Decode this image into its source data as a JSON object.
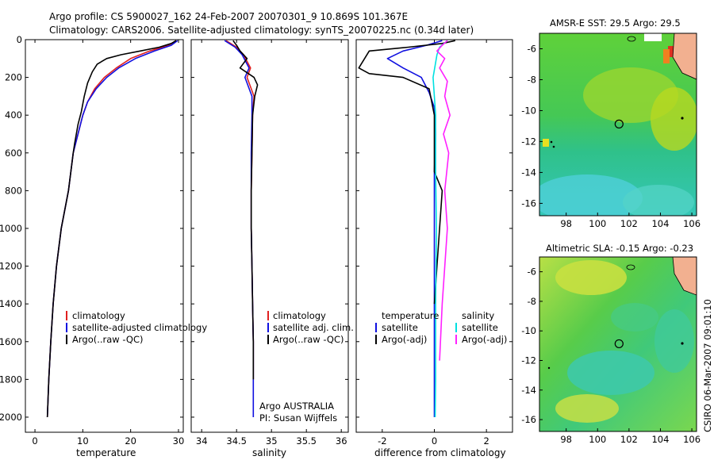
{
  "header": {
    "line1": "Argo profile: CS 5900027_162 24-Feb-2007 20070301_9 10.869S 101.367E",
    "line2": "Climatology: CARS2006. Satellite-adjusted climatology: synTS_20070225.nc (0.34d later)"
  },
  "colors": {
    "climatology": "#e02020",
    "satellite": "#1010e0",
    "argo": "#000000",
    "sat_salinity": "#00e0e0",
    "argo_salinity": "#ff20ff"
  },
  "chart_data": [
    {
      "type": "line",
      "id": "temperature",
      "xlabel": "temperature",
      "ylabel": "",
      "xlim": [
        -2,
        31
      ],
      "ylim": [
        2080,
        0
      ],
      "x_ticks": [
        "0",
        "10",
        "20",
        "30"
      ],
      "y_ticks": [
        "0",
        "200",
        "400",
        "600",
        "800",
        "1000",
        "1200",
        "1400",
        "1600",
        "1800",
        "2000"
      ],
      "legend": [
        "climatology",
        "satellite-adjusted climatology",
        "Argo(..raw -QC)"
      ],
      "series": [
        {
          "name": "climatology",
          "color": "#e02020",
          "points": [
            [
              29.5,
              5
            ],
            [
              28,
              30
            ],
            [
              24,
              60
            ],
            [
              20,
              100
            ],
            [
              17,
              150
            ],
            [
              14.5,
              200
            ],
            [
              12.5,
              260
            ],
            [
              11,
              330
            ],
            [
              10,
              400
            ],
            [
              9,
              500
            ],
            [
              8,
              600
            ],
            [
              7,
              800
            ],
            [
              5.5,
              1000
            ],
            [
              4.5,
              1200
            ],
            [
              3.8,
              1400
            ],
            [
              3.3,
              1600
            ],
            [
              2.9,
              1800
            ],
            [
              2.6,
              2000
            ]
          ]
        },
        {
          "name": "satellite-adjusted climatology",
          "color": "#1010e0",
          "points": [
            [
              29.8,
              5
            ],
            [
              28.5,
              30
            ],
            [
              25,
              60
            ],
            [
              21,
              100
            ],
            [
              17.5,
              150
            ],
            [
              15,
              200
            ],
            [
              12.8,
              260
            ],
            [
              11,
              330
            ],
            [
              10,
              400
            ],
            [
              9,
              500
            ],
            [
              8,
              600
            ],
            [
              7,
              800
            ],
            [
              5.5,
              1000
            ],
            [
              4.5,
              1200
            ],
            [
              3.8,
              1400
            ],
            [
              3.3,
              1600
            ],
            [
              2.9,
              1800
            ],
            [
              2.6,
              2000
            ]
          ]
        },
        {
          "name": "Argo(..raw -QC)",
          "color": "#000000",
          "points": [
            [
              29.5,
              5
            ],
            [
              28.5,
              20
            ],
            [
              26,
              40
            ],
            [
              22,
              60
            ],
            [
              18,
              80
            ],
            [
              15,
              100
            ],
            [
              13,
              130
            ],
            [
              12,
              170
            ],
            [
              11,
              230
            ],
            [
              10.3,
              300
            ],
            [
              9.7,
              380
            ],
            [
              9,
              450
            ],
            [
              8.3,
              550
            ],
            [
              8,
              600
            ],
            [
              7,
              800
            ],
            [
              5.5,
              1000
            ],
            [
              4.5,
              1200
            ],
            [
              3.8,
              1400
            ],
            [
              3.3,
              1600
            ],
            [
              2.9,
              1800
            ],
            [
              2.6,
              2000
            ]
          ]
        }
      ]
    },
    {
      "type": "line",
      "id": "salinity",
      "xlabel": "salinity",
      "ylabel": "",
      "xlim": [
        33.85,
        36.1
      ],
      "ylim": [
        2080,
        0
      ],
      "x_ticks": [
        "34",
        "34.5",
        "35",
        "35.5",
        "36"
      ],
      "legend": [
        "climatology",
        "satellite adj. clim.",
        "Argo(..raw -QC)"
      ],
      "annotations": [
        "Argo AUSTRALIA",
        "PI: Susan Wijffels"
      ],
      "series": [
        {
          "name": "climatology",
          "color": "#e02020",
          "points": [
            [
              34.35,
              5
            ],
            [
              34.5,
              40
            ],
            [
              34.6,
              80
            ],
            [
              34.7,
              150
            ],
            [
              34.65,
              200
            ],
            [
              34.75,
              300
            ],
            [
              34.73,
              400
            ],
            [
              34.72,
              600
            ],
            [
              34.71,
              800
            ],
            [
              34.71,
              1000
            ],
            [
              34.72,
              1200
            ],
            [
              34.73,
              1400
            ],
            [
              34.74,
              1600
            ],
            [
              34.74,
              1800
            ]
          ]
        },
        {
          "name": "satellite adj. clim.",
          "color": "#1010e0",
          "points": [
            [
              34.33,
              5
            ],
            [
              34.48,
              40
            ],
            [
              34.58,
              80
            ],
            [
              34.68,
              150
            ],
            [
              34.62,
              200
            ],
            [
              34.72,
              300
            ],
            [
              34.72,
              400
            ],
            [
              34.71,
              600
            ],
            [
              34.71,
              800
            ],
            [
              34.71,
              1000
            ],
            [
              34.72,
              1200
            ],
            [
              34.73,
              1400
            ],
            [
              34.74,
              1600
            ],
            [
              34.74,
              1800
            ],
            [
              34.74,
              2000
            ]
          ]
        },
        {
          "name": "Argo(..raw -QC)",
          "color": "#000000",
          "points": [
            [
              34.45,
              5
            ],
            [
              34.5,
              30
            ],
            [
              34.55,
              60
            ],
            [
              34.65,
              100
            ],
            [
              34.55,
              150
            ],
            [
              34.75,
              200
            ],
            [
              34.8,
              240
            ],
            [
              34.76,
              300
            ],
            [
              34.73,
              400
            ],
            [
              34.72,
              600
            ],
            [
              34.71,
              800
            ],
            [
              34.71,
              1000
            ],
            [
              34.72,
              1200
            ],
            [
              34.73,
              1400
            ],
            [
              34.74,
              1600
            ],
            [
              34.74,
              1800
            ]
          ]
        }
      ]
    },
    {
      "type": "line",
      "id": "difference",
      "xlabel": "difference from climatology",
      "ylabel": "",
      "xlim": [
        -3,
        3
      ],
      "ylim": [
        2080,
        0
      ],
      "x_ticks": [
        "-2",
        "0",
        "2"
      ],
      "legend_left": {
        "heading": "temperature",
        "items": [
          "satellite",
          "Argo(-adj)"
        ]
      },
      "legend_right": {
        "heading": "salinity",
        "items": [
          "satellite",
          "Argo(-adj)"
        ]
      },
      "series": [
        {
          "name": "temperature satellite",
          "color": "#1010e0",
          "points": [
            [
              0.3,
              5
            ],
            [
              -0.3,
              30
            ],
            [
              -1.2,
              60
            ],
            [
              -1.8,
              100
            ],
            [
              -1.2,
              150
            ],
            [
              -0.5,
              200
            ],
            [
              -0.2,
              280
            ],
            [
              0,
              360
            ],
            [
              0.05,
              500
            ],
            [
              0,
              700
            ],
            [
              0,
              1000
            ],
            [
              0,
              1400
            ],
            [
              0,
              1800
            ],
            [
              0,
              2000
            ]
          ]
        },
        {
          "name": "temperature Argo(-adj)",
          "color": "#000000",
          "points": [
            [
              0.8,
              5
            ],
            [
              0.3,
              20
            ],
            [
              -1,
              40
            ],
            [
              -2.5,
              60
            ],
            [
              -2.9,
              150
            ],
            [
              -2.5,
              180
            ],
            [
              -1.2,
              200
            ],
            [
              -0.2,
              260
            ],
            [
              0,
              400
            ],
            [
              0,
              700
            ],
            [
              0.3,
              800
            ],
            [
              0.2,
              1000
            ],
            [
              0.1,
              1200
            ],
            [
              0,
              1400
            ]
          ]
        },
        {
          "name": "salinity satellite",
          "color": "#00e0e0",
          "points": [
            [
              0.5,
              5
            ],
            [
              0.2,
              40
            ],
            [
              0.1,
              80
            ],
            [
              -0.05,
              200
            ],
            [
              0.05,
              400
            ],
            [
              0.05,
              700
            ],
            [
              0.08,
              1000
            ],
            [
              0.05,
              1400
            ],
            [
              0.05,
              1800
            ],
            [
              0.03,
              2000
            ]
          ]
        },
        {
          "name": "salinity Argo(-adj)",
          "color": "#ff20ff",
          "points": [
            [
              0.5,
              5
            ],
            [
              0.3,
              30
            ],
            [
              0.1,
              60
            ],
            [
              0.4,
              100
            ],
            [
              0.2,
              150
            ],
            [
              0.5,
              220
            ],
            [
              0.4,
              300
            ],
            [
              0.6,
              400
            ],
            [
              0.35,
              500
            ],
            [
              0.55,
              600
            ],
            [
              0.4,
              800
            ],
            [
              0.5,
              1000
            ],
            [
              0.3,
              1400
            ],
            [
              0.2,
              1700
            ]
          ]
        }
      ]
    }
  ],
  "maps": [
    {
      "id": "sst",
      "title": "AMSR-E SST: 29.5 Argo: 29.5",
      "x_ticks": [
        "98",
        "100",
        "102",
        "104",
        "106"
      ],
      "y_ticks": [
        "-6",
        "-8",
        "-10",
        "-12",
        "-14",
        "-16"
      ],
      "xlim": [
        96.3,
        106.3
      ],
      "ylim": [
        -16.8,
        -5.0
      ],
      "marker": [
        101.367,
        -10.869
      ]
    },
    {
      "id": "sla",
      "title": "Altimetric SLA: -0.15 Argo: -0.23",
      "x_ticks": [
        "98",
        "100",
        "102",
        "104",
        "106"
      ],
      "y_ticks": [
        "-6",
        "-8",
        "-10",
        "-12",
        "-14",
        "-16"
      ],
      "xlim": [
        96.3,
        106.3
      ],
      "ylim": [
        -16.8,
        -5.0
      ],
      "marker": [
        101.367,
        -10.869
      ]
    }
  ],
  "footer_stamp": "CSIRO 06-Mar-2007 09:01:10"
}
